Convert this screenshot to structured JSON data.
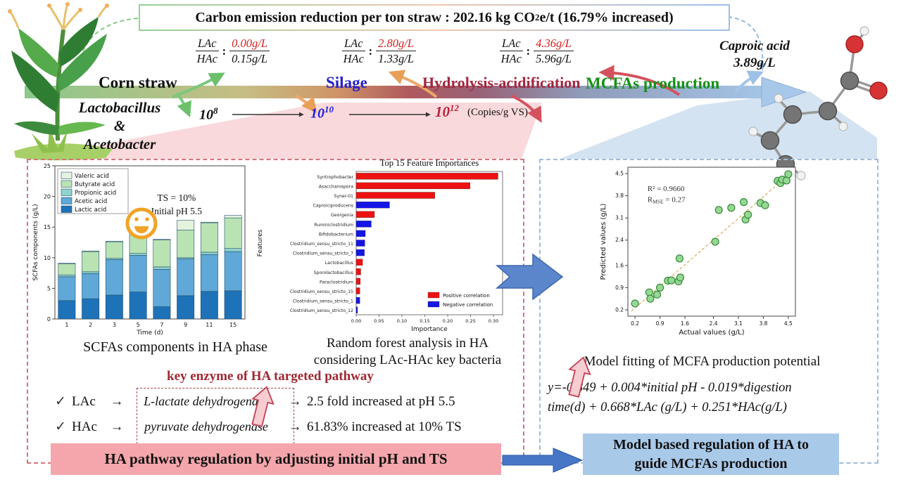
{
  "banner": {
    "part1": "Carbon emission reduction per ton straw : 202.16 kg CO",
    "sub": "2",
    "part2": "e/t (16.79% increased)"
  },
  "stages": {
    "corn_straw": "Corn straw",
    "silage": "Silage",
    "hydrolysis": "Hydrolysis-acidification",
    "mcfa": "MCFAs production"
  },
  "colors": {
    "silage": "#2823c8",
    "hydrolysis": "#a12840",
    "mcfa": "#169016",
    "ratio_accent": "#d42020",
    "count_mid": "#2020d8",
    "count_high": "#b81f38",
    "panel_left_border": "#d4747e",
    "panel_right_border": "#9fbcd9",
    "banner_pink_bg": "#f5a6ac",
    "banner_blue_bg": "#a9c9e9"
  },
  "ratios": [
    {
      "top": "LAc",
      "bottom": "HAc",
      "top_value": "0.00g/L",
      "bottom_value": "0.15g/L"
    },
    {
      "top": "LAc",
      "bottom": "HAc",
      "top_value": "2.80g/L",
      "bottom_value": "1.33g/L"
    },
    {
      "top": "LAc",
      "bottom": "HAc",
      "top_value": "4.36g/L",
      "bottom_value": "5.96g/L"
    }
  ],
  "microbes": {
    "line1": "Lactobacillus",
    "line2": "&",
    "line3": "Acetobacter"
  },
  "counts": {
    "c1_base": "10",
    "c1_exp": "8",
    "c2_base": "10",
    "c2_exp": "10",
    "c3_base": "10",
    "c3_exp": "12",
    "unit": "(Copies/g VS)"
  },
  "product": {
    "name": "Caproic acid",
    "value": "3.89",
    "unit": "g/L"
  },
  "captions": {
    "scfa": "SCFAs components in HA phase",
    "rf_line1": "Random forest analysis in HA",
    "rf_line2": "considering LAc-HAc key bacteria",
    "model": "Model fitting of MCFA production potential"
  },
  "key_enzyme": {
    "heading": "key enzyme of HA targeted pathway",
    "rows": [
      {
        "check": "✓",
        "acid": "LAc",
        "arrow": "→",
        "enzyme": "L-lactate dehydrogenase",
        "arrow2": "→",
        "result": "2.5 fold increased at pH 5.5"
      },
      {
        "check": "✓",
        "acid": "HAc",
        "arrow": "→",
        "enzyme": "pyruvate dehydrogenase",
        "arrow2": "→",
        "result": "61.83% increased at 10% TS"
      }
    ]
  },
  "equation": {
    "line1": "y=-0.849  +  0.004*initial  pH  -  0.019*digestion",
    "line2": "time(d) + 0.668*LAc (g/L) + 0.251*HAc(g/L)"
  },
  "banners": {
    "pink": "HA pathway regulation by adjusting initial pH and TS",
    "blue_line1": "Model based regulation of HA to",
    "blue_line2": "guide MCFAs production"
  },
  "chart_data": [
    {
      "id": "scfa_components",
      "type": "bar",
      "stacked": true,
      "xlabel": "Time (d)",
      "ylabel": "SCFAs components (g/L)",
      "ylim": [
        0,
        25
      ],
      "yticks": [
        0,
        5,
        10,
        15,
        20,
        25
      ],
      "categories": [
        "1",
        "2",
        "3",
        "5",
        "7",
        "9",
        "11",
        "15"
      ],
      "series": [
        {
          "name": "Lactic acid",
          "color": "#1e72b8",
          "values": [
            3.0,
            3.3,
            3.9,
            4.4,
            2.0,
            3.8,
            4.5,
            4.6
          ]
        },
        {
          "name": "Acetic acid",
          "color": "#5fa8d8",
          "values": [
            3.9,
            4.1,
            5.8,
            6.0,
            6.1,
            6.0,
            6.0,
            6.4
          ]
        },
        {
          "name": "Propionic acid",
          "color": "#90d2cc",
          "values": [
            0.3,
            0.3,
            0.2,
            0.3,
            0.4,
            0.2,
            0.4,
            0.5
          ]
        },
        {
          "name": "Butyrate acid",
          "color": "#b9e3b3",
          "values": [
            1.8,
            3.3,
            2.7,
            3.3,
            4.4,
            4.5,
            4.8,
            5.0
          ]
        },
        {
          "name": "Valeric acid",
          "color": "#e4f3dd",
          "values": [
            0.1,
            0.1,
            0.1,
            0.2,
            0.1,
            1.6,
            0.1,
            0.4
          ]
        }
      ],
      "legend_order": [
        "Valeric acid",
        "Butyrate acid",
        "Propionic acid",
        "Acetic acid",
        "Lactic acid"
      ],
      "annotation_lines": [
        "TS = 10%",
        "Initial pH 5.5"
      ]
    },
    {
      "id": "feature_importances",
      "type": "bar",
      "orientation": "horizontal",
      "title": "Top 15 Feature Importances",
      "xlabel": "Importance",
      "ylabel": "Features",
      "xlim": [
        0,
        0.32
      ],
      "xticks": [
        0,
        0.05,
        0.1,
        0.15,
        0.2,
        0.25,
        0.3
      ],
      "positive_color": "#ee1111",
      "negative_color": "#1515e6",
      "legend": [
        {
          "label": "Positive correlation",
          "key": "positive"
        },
        {
          "label": "Negative correlation",
          "key": "negative"
        }
      ],
      "bars": [
        {
          "label": "Syntrophobacter",
          "value": 0.31,
          "correlation": "positive"
        },
        {
          "label": "Asaccharospora",
          "value": 0.249,
          "correlation": "positive"
        },
        {
          "label": "Syner-01",
          "value": 0.172,
          "correlation": "positive"
        },
        {
          "label": "Caproiciproducens",
          "value": 0.073,
          "correlation": "negative"
        },
        {
          "label": "Georgenia",
          "value": 0.04,
          "correlation": "positive"
        },
        {
          "label": "Ruminiclostridium",
          "value": 0.033,
          "correlation": "negative"
        },
        {
          "label": "Bifidobacterium",
          "value": 0.02,
          "correlation": "negative"
        },
        {
          "label": "Clostridium_sensu_stricto_11",
          "value": 0.019,
          "correlation": "negative"
        },
        {
          "label": "Clostridium_sensu_stricto_7",
          "value": 0.018,
          "correlation": "negative"
        },
        {
          "label": "Lactobacillus",
          "value": 0.014,
          "correlation": "positive"
        },
        {
          "label": "Sporolactobacillus",
          "value": 0.01,
          "correlation": "positive"
        },
        {
          "label": "Paraclostridium",
          "value": 0.009,
          "correlation": "positive"
        },
        {
          "label": "Clostridium_sensu_stricto_15",
          "value": 0.008,
          "correlation": "positive"
        },
        {
          "label": "Clostridium_sensu_stricto_1",
          "value": 0.008,
          "correlation": "negative"
        },
        {
          "label": "Clostridium_sensu_stricto_12",
          "value": 0.003,
          "correlation": "negative"
        }
      ]
    },
    {
      "id": "model_fit",
      "type": "scatter",
      "xlabel": "Actual values (g/L)",
      "ylabel": "Predicted values (g/L)",
      "xlim": [
        0,
        4.7
      ],
      "ylim": [
        0,
        4.7
      ],
      "xticks": [
        0.2,
        0.9,
        1.6,
        2.4,
        3.1,
        3.8,
        4.5
      ],
      "yticks": [
        0.2,
        0.9,
        1.6,
        2.4,
        3.1,
        3.8,
        4.5
      ],
      "annotation": {
        "r2": "R² = 0.9660",
        "rmse_prefix": "R",
        "rmse_sub": "MSE",
        "rmse_suffix": " = 0.27"
      },
      "point_color": "#93d893",
      "point_edge": "#3a8a3a",
      "trendline": {
        "x1": 0.1,
        "y1": 0.16,
        "x2": 4.6,
        "y2": 4.55,
        "color": "#e0b060"
      },
      "points": [
        [
          0.2,
          0.4
        ],
        [
          0.6,
          0.75
        ],
        [
          0.63,
          0.55
        ],
        [
          0.82,
          0.68
        ],
        [
          0.9,
          0.9
        ],
        [
          1.12,
          1.12
        ],
        [
          1.22,
          1.13
        ],
        [
          1.42,
          1.1
        ],
        [
          1.47,
          1.22
        ],
        [
          1.45,
          1.82
        ],
        [
          2.45,
          2.35
        ],
        [
          2.55,
          3.35
        ],
        [
          2.9,
          3.42
        ],
        [
          3.25,
          3.6
        ],
        [
          3.3,
          3.05
        ],
        [
          3.37,
          3.2
        ],
        [
          3.72,
          3.57
        ],
        [
          3.85,
          3.5
        ],
        [
          4.2,
          4.27
        ],
        [
          4.28,
          4.2
        ],
        [
          4.33,
          4.31
        ],
        [
          4.45,
          4.28
        ],
        [
          4.5,
          4.48
        ]
      ]
    }
  ]
}
